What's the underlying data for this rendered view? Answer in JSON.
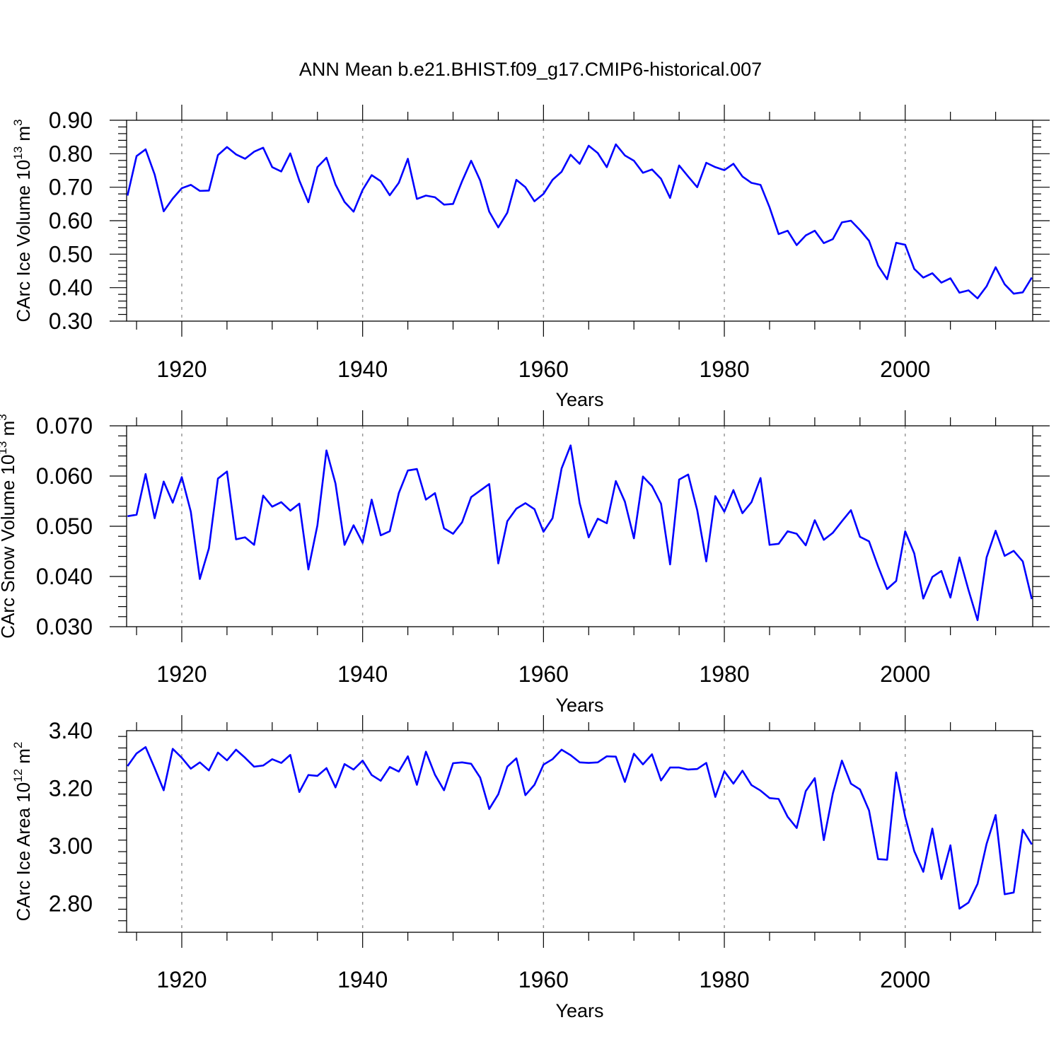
{
  "title": "ANN Mean b.e21.BHIST.f09_g17.CMIP6-historical.007",
  "chart_data": [
    {
      "type": "line",
      "ylabel": {
        "text": "CArc Ice Volume 10",
        "exp": "13",
        "unit": " m",
        "unit_exp": "3"
      },
      "xlabel": "Years",
      "xlim": [
        1913.9,
        2014.1
      ],
      "ylim": [
        0.3,
        0.9
      ],
      "xticks": [
        1920,
        1940,
        1960,
        1980,
        2000
      ],
      "xtick_labels": [
        "1920",
        "1940",
        "1960",
        "1980",
        "2000"
      ],
      "yticks": [
        0.3,
        0.4,
        0.5,
        0.6,
        0.7,
        0.8,
        0.9
      ],
      "ytick_labels": [
        "0.30",
        "0.40",
        "0.50",
        "0.60",
        "0.70",
        "0.80",
        "0.90"
      ],
      "grid": "vertical dashed at major x ticks",
      "color": "#0000ff",
      "x_start": 1914,
      "values": [
        0.675,
        0.793,
        0.813,
        0.738,
        0.628,
        0.666,
        0.697,
        0.707,
        0.689,
        0.69,
        0.796,
        0.82,
        0.798,
        0.785,
        0.806,
        0.818,
        0.76,
        0.747,
        0.801,
        0.72,
        0.655,
        0.76,
        0.788,
        0.708,
        0.656,
        0.627,
        0.692,
        0.736,
        0.718,
        0.676,
        0.713,
        0.785,
        0.665,
        0.675,
        0.67,
        0.648,
        0.65,
        0.718,
        0.779,
        0.72,
        0.627,
        0.58,
        0.624,
        0.722,
        0.7,
        0.658,
        0.68,
        0.722,
        0.746,
        0.797,
        0.77,
        0.824,
        0.802,
        0.76,
        0.828,
        0.795,
        0.779,
        0.743,
        0.753,
        0.725,
        0.668,
        0.765,
        0.732,
        0.7,
        0.773,
        0.76,
        0.751,
        0.77,
        0.732,
        0.713,
        0.707,
        0.64,
        0.56,
        0.57,
        0.527,
        0.556,
        0.57,
        0.533,
        0.545,
        0.595,
        0.6,
        0.572,
        0.54,
        0.466,
        0.425,
        0.534,
        0.528,
        0.456,
        0.43,
        0.443,
        0.415,
        0.428,
        0.385,
        0.392,
        0.368,
        0.404,
        0.461,
        0.41,
        0.382,
        0.386,
        0.43
      ]
    },
    {
      "type": "line",
      "ylabel": {
        "text": "CArc Snow Volume 10",
        "exp": "13",
        "unit": " m",
        "unit_exp": "3"
      },
      "xlabel": "Years",
      "xlim": [
        1913.9,
        2014.1
      ],
      "ylim": [
        0.03,
        0.07
      ],
      "xticks": [
        1920,
        1940,
        1960,
        1980,
        2000
      ],
      "xtick_labels": [
        "1920",
        "1940",
        "1960",
        "1980",
        "2000"
      ],
      "yticks": [
        0.03,
        0.04,
        0.05,
        0.06,
        0.07
      ],
      "ytick_labels": [
        "0.030",
        "0.040",
        "0.050",
        "0.060",
        "0.070"
      ],
      "grid": "vertical dashed at major x ticks",
      "color": "#0000ff",
      "x_start": 1914,
      "values": [
        0.052,
        0.0523,
        0.0604,
        0.0516,
        0.0589,
        0.0547,
        0.0598,
        0.0529,
        0.0395,
        0.0456,
        0.0595,
        0.0609,
        0.0474,
        0.0478,
        0.0463,
        0.0561,
        0.0539,
        0.0548,
        0.0531,
        0.0545,
        0.0414,
        0.0502,
        0.0651,
        0.0585,
        0.0463,
        0.0502,
        0.0467,
        0.0553,
        0.0482,
        0.049,
        0.0566,
        0.0611,
        0.0614,
        0.0553,
        0.0566,
        0.0496,
        0.0485,
        0.0508,
        0.0558,
        0.0571,
        0.0584,
        0.0426,
        0.051,
        0.0535,
        0.0546,
        0.0534,
        0.0489,
        0.0516,
        0.0615,
        0.0661,
        0.0546,
        0.0478,
        0.0515,
        0.0506,
        0.059,
        0.0549,
        0.0476,
        0.0599,
        0.058,
        0.0545,
        0.0424,
        0.0593,
        0.0603,
        0.0532,
        0.043,
        0.056,
        0.0529,
        0.0572,
        0.0526,
        0.0548,
        0.0596,
        0.0463,
        0.0465,
        0.049,
        0.0485,
        0.0462,
        0.0512,
        0.0473,
        0.0487,
        0.051,
        0.0532,
        0.0479,
        0.047,
        0.042,
        0.0375,
        0.0391,
        0.049,
        0.0446,
        0.0356,
        0.0399,
        0.0411,
        0.0358,
        0.0438,
        0.0373,
        0.0313,
        0.0438,
        0.0491,
        0.0441,
        0.0451,
        0.043,
        0.0355
      ]
    },
    {
      "type": "line",
      "ylabel": {
        "text": "CArc Ice Area 10",
        "exp": "12",
        "unit": " m",
        "unit_exp": "2"
      },
      "xlabel": "Years",
      "xlim": [
        1913.9,
        2014.1
      ],
      "ylim": [
        2.7,
        3.4
      ],
      "xticks": [
        1920,
        1940,
        1960,
        1980,
        2000
      ],
      "xtick_labels": [
        "1920",
        "1940",
        "1960",
        "1980",
        "2000"
      ],
      "yticks": [
        2.8,
        3.0,
        3.2,
        3.4
      ],
      "ytick_labels": [
        "2.80",
        "3.00",
        "3.20",
        "3.40"
      ],
      "grid": "vertical dashed at major x ticks",
      "color": "#0000ff",
      "x_start": 1914,
      "values": [
        3.277,
        3.321,
        3.343,
        3.27,
        3.193,
        3.337,
        3.306,
        3.268,
        3.29,
        3.262,
        3.324,
        3.297,
        3.334,
        3.306,
        3.275,
        3.279,
        3.301,
        3.288,
        3.316,
        3.187,
        3.246,
        3.243,
        3.27,
        3.203,
        3.284,
        3.265,
        3.296,
        3.246,
        3.226,
        3.274,
        3.258,
        3.311,
        3.212,
        3.327,
        3.247,
        3.193,
        3.287,
        3.29,
        3.285,
        3.237,
        3.128,
        3.179,
        3.275,
        3.304,
        3.176,
        3.212,
        3.282,
        3.301,
        3.334,
        3.315,
        3.29,
        3.288,
        3.29,
        3.311,
        3.31,
        3.222,
        3.32,
        3.283,
        3.318,
        3.227,
        3.272,
        3.272,
        3.265,
        3.267,
        3.288,
        3.17,
        3.259,
        3.216,
        3.261,
        3.211,
        3.192,
        3.166,
        3.163,
        3.101,
        3.062,
        3.19,
        3.235,
        3.02,
        3.182,
        3.296,
        3.216,
        3.196,
        3.123,
        2.954,
        2.952,
        3.255,
        3.101,
        2.982,
        2.91,
        3.06,
        2.885,
        3.002,
        2.782,
        2.803,
        2.868,
        3.007,
        3.107,
        2.832,
        2.838,
        3.056,
        3.005
      ]
    }
  ]
}
